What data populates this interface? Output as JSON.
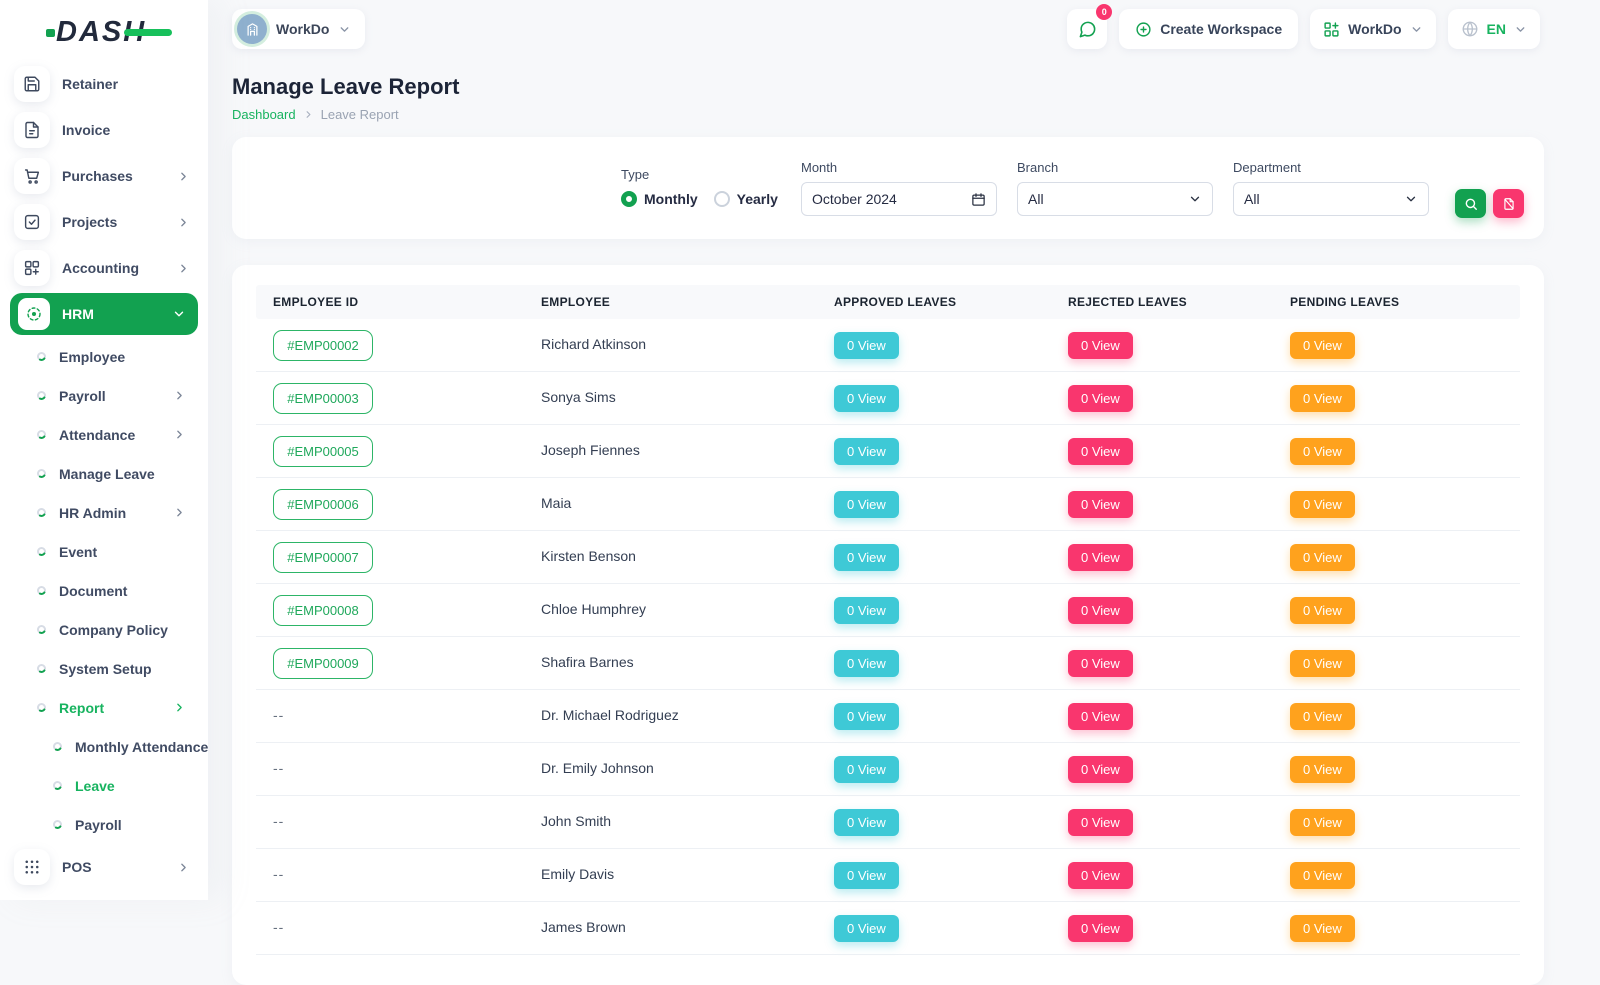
{
  "colors": {
    "primary_green": "#12A150",
    "approved_teal": "#3EC9D6",
    "rejected_pink": "#F9366E",
    "pending_orange": "#FFA21D"
  },
  "brand": {
    "logo_text": "DASH"
  },
  "topbar": {
    "workspace": {
      "label": "WorkDo"
    },
    "messages": {
      "badge": "0"
    },
    "create_workspace": {
      "label": "Create Workspace"
    },
    "workdo_menu": {
      "label": "WorkDo"
    },
    "language": {
      "label": "EN"
    }
  },
  "sidebar": {
    "items": [
      {
        "label": "Retainer",
        "type": "top",
        "icon": "retainer"
      },
      {
        "label": "Invoice",
        "type": "top",
        "icon": "invoice"
      },
      {
        "label": "Purchases",
        "type": "top",
        "icon": "purchases",
        "arrow": "right"
      },
      {
        "label": "Projects",
        "type": "top",
        "icon": "projects",
        "arrow": "right"
      },
      {
        "label": "Accounting",
        "type": "top",
        "icon": "accounting",
        "arrow": "right"
      },
      {
        "label": "HRM",
        "type": "top",
        "icon": "hrm",
        "active": true,
        "arrow": "down"
      },
      {
        "label": "Employee",
        "type": "sub"
      },
      {
        "label": "Payroll",
        "type": "sub",
        "arrow": "right"
      },
      {
        "label": "Attendance",
        "type": "sub",
        "arrow": "right"
      },
      {
        "label": "Manage Leave",
        "type": "sub"
      },
      {
        "label": "HR Admin",
        "type": "sub",
        "arrow": "right"
      },
      {
        "label": "Event",
        "type": "sub"
      },
      {
        "label": "Document",
        "type": "sub"
      },
      {
        "label": "Company Policy",
        "type": "sub"
      },
      {
        "label": "System Setup",
        "type": "sub"
      },
      {
        "label": "Report",
        "type": "sub",
        "active": true,
        "arrow": "right"
      },
      {
        "label": "Monthly Attendance",
        "type": "subsub"
      },
      {
        "label": "Leave",
        "type": "subsub",
        "active": true
      },
      {
        "label": "Payroll",
        "type": "subsub"
      },
      {
        "label": "POS",
        "type": "top",
        "icon": "pos",
        "arrow": "right"
      }
    ]
  },
  "page": {
    "title": "Manage Leave Report",
    "breadcrumb": {
      "home": "Dashboard",
      "current": "Leave Report"
    }
  },
  "filters": {
    "type": {
      "label": "Type",
      "options": [
        {
          "label": "Monthly",
          "selected": true
        },
        {
          "label": "Yearly",
          "selected": false
        }
      ]
    },
    "month": {
      "label": "Month",
      "value": "October 2024"
    },
    "branch": {
      "label": "Branch",
      "value": "All"
    },
    "department": {
      "label": "Department",
      "value": "All"
    }
  },
  "table": {
    "columns": [
      "EMPLOYEE ID",
      "EMPLOYEE",
      "APPROVED LEAVES",
      "REJECTED LEAVES",
      "PENDING LEAVES"
    ],
    "rows": [
      {
        "id": "#EMP00002",
        "name": "Richard Atkinson",
        "approved": "0 View",
        "rejected": "0 View",
        "pending": "0 View"
      },
      {
        "id": "#EMP00003",
        "name": "Sonya Sims",
        "approved": "0 View",
        "rejected": "0 View",
        "pending": "0 View"
      },
      {
        "id": "#EMP00005",
        "name": "Joseph Fiennes",
        "approved": "0 View",
        "rejected": "0 View",
        "pending": "0 View"
      },
      {
        "id": "#EMP00006",
        "name": "Maia",
        "approved": "0 View",
        "rejected": "0 View",
        "pending": "0 View"
      },
      {
        "id": "#EMP00007",
        "name": "Kirsten Benson",
        "approved": "0 View",
        "rejected": "0 View",
        "pending": "0 View"
      },
      {
        "id": "#EMP00008",
        "name": "Chloe Humphrey",
        "approved": "0 View",
        "rejected": "0 View",
        "pending": "0 View"
      },
      {
        "id": "#EMP00009",
        "name": "Shafira Barnes",
        "approved": "0 View",
        "rejected": "0 View",
        "pending": "0 View"
      },
      {
        "id": "--",
        "name": "Dr. Michael Rodriguez",
        "approved": "0 View",
        "rejected": "0 View",
        "pending": "0 View"
      },
      {
        "id": "--",
        "name": "Dr. Emily Johnson",
        "approved": "0 View",
        "rejected": "0 View",
        "pending": "0 View"
      },
      {
        "id": "--",
        "name": "John Smith",
        "approved": "0 View",
        "rejected": "0 View",
        "pending": "0 View"
      },
      {
        "id": "--",
        "name": "Emily Davis",
        "approved": "0 View",
        "rejected": "0 View",
        "pending": "0 View"
      },
      {
        "id": "--",
        "name": "James Brown",
        "approved": "0 View",
        "rejected": "0 View",
        "pending": "0 View"
      }
    ]
  }
}
